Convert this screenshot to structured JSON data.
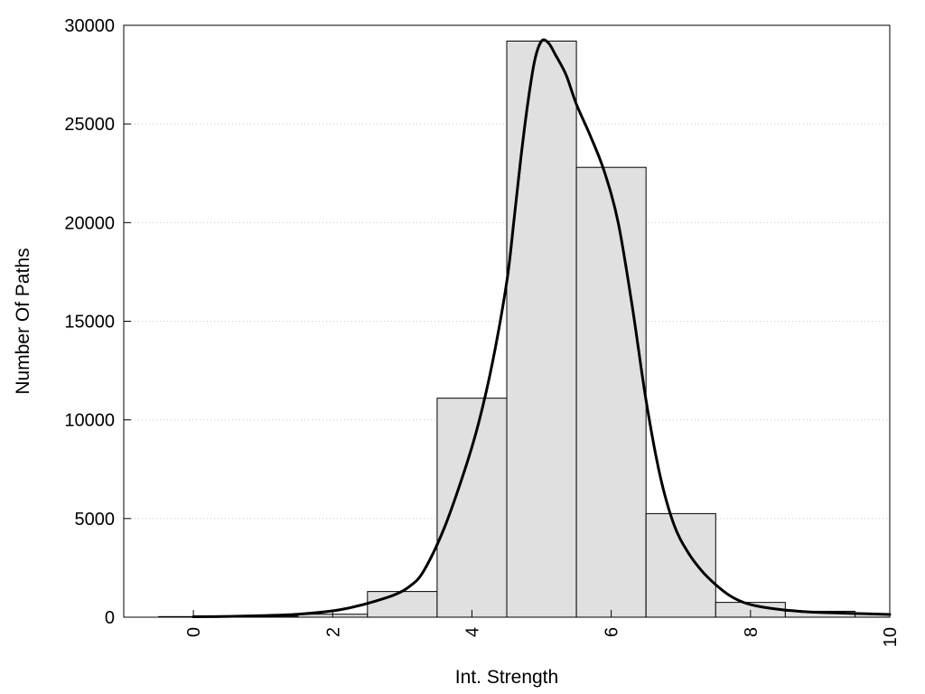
{
  "chart_data": {
    "type": "bar",
    "xlabel": "Int. Strength",
    "ylabel": "Number Of Paths",
    "xlim": [
      -1,
      10
    ],
    "ylim": [
      0,
      30000
    ],
    "x_ticks": [
      0,
      2,
      4,
      6,
      8,
      10
    ],
    "y_ticks": [
      0,
      5000,
      10000,
      15000,
      20000,
      25000,
      30000
    ],
    "grid": "horizontal dotted",
    "bars": {
      "bin_width": 1,
      "centers": [
        0,
        1,
        2,
        3,
        4,
        5,
        6,
        7,
        8,
        9,
        10
      ],
      "values": [
        30,
        50,
        150,
        1300,
        11100,
        29200,
        22800,
        5250,
        750,
        300,
        150
      ]
    },
    "curve": {
      "x": [
        0,
        0.5,
        1,
        1.5,
        2,
        2.3,
        2.6,
        2.9,
        3.1,
        3.3,
        3.6,
        3.9,
        4.1,
        4.3,
        4.5,
        4.6,
        4.7,
        4.8,
        4.9,
        5.0,
        5.1,
        5.2,
        5.35,
        5.5,
        5.7,
        5.9,
        6.1,
        6.3,
        6.5,
        6.7,
        6.9,
        7.1,
        7.3,
        7.5,
        7.7,
        7.9,
        8.1,
        8.4,
        8.7,
        9.0,
        9.5,
        10
      ],
      "y": [
        20,
        40,
        80,
        150,
        320,
        520,
        800,
        1150,
        1550,
        2300,
        4500,
        7500,
        9900,
        13000,
        17000,
        20000,
        23200,
        26000,
        28200,
        29200,
        29100,
        28500,
        27500,
        26000,
        24400,
        22600,
        20000,
        15800,
        11000,
        7200,
        4700,
        3300,
        2350,
        1650,
        1100,
        750,
        560,
        400,
        300,
        240,
        190,
        140
      ]
    }
  }
}
